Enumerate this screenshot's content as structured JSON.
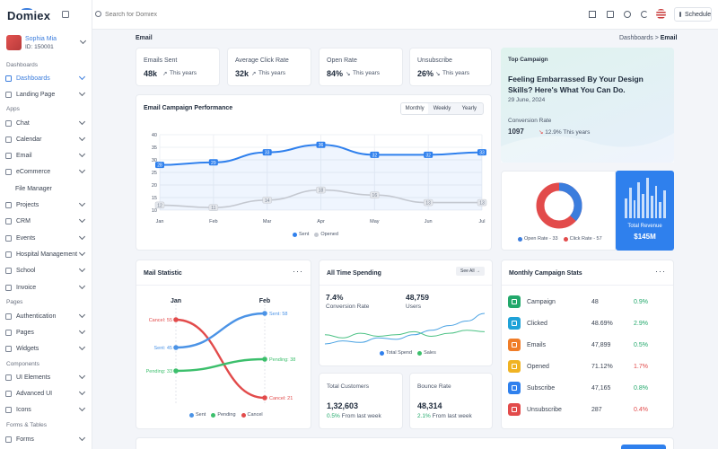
{
  "brand": {
    "logo": "Domiex"
  },
  "user": {
    "name": "Sophia Mia",
    "id": "ID: 150001"
  },
  "sidebar": {
    "sections": [
      "Dashboards",
      "Apps",
      "Pages",
      "Components",
      "Forms & Tables"
    ],
    "items": [
      {
        "label": "Dashboards",
        "active": true
      },
      {
        "label": "Landing Page"
      },
      {
        "label": "Chat"
      },
      {
        "label": "Calendar"
      },
      {
        "label": "Email"
      },
      {
        "label": "eCommerce"
      },
      {
        "label": "File Manager"
      },
      {
        "label": "Projects"
      },
      {
        "label": "CRM"
      },
      {
        "label": "Events"
      },
      {
        "label": "Hospital Management"
      },
      {
        "label": "School"
      },
      {
        "label": "Invoice"
      },
      {
        "label": "Authentication"
      },
      {
        "label": "Pages"
      },
      {
        "label": "Widgets"
      },
      {
        "label": "UI Elements"
      },
      {
        "label": "Advanced UI"
      },
      {
        "label": "Icons"
      },
      {
        "label": "Forms"
      }
    ]
  },
  "topbar": {
    "search_placeholder": "Search for Domiex",
    "schedule_label": "Schedule",
    "icons": [
      "grid-icon",
      "gift-icon",
      "settings-icon",
      "moon-icon",
      "flag-icon",
      "calendar-icon"
    ]
  },
  "page": {
    "title": "Email",
    "breadcrumb_parent": "Dashboards",
    "breadcrumb_sep": ">",
    "breadcrumb_current": "Email"
  },
  "stats": [
    {
      "label": "Emails Sent",
      "value": "48k",
      "trend": "up",
      "period": "This years"
    },
    {
      "label": "Average Click Rate",
      "value": "32k",
      "trend": "up",
      "period": "This years"
    },
    {
      "label": "Open Rate",
      "value": "84%",
      "trend": "down",
      "period": "This years"
    },
    {
      "label": "Unsubscribe",
      "value": "26%",
      "trend": "down",
      "period": "This years"
    }
  ],
  "performance": {
    "title": "Email Campaign Performance",
    "tabs": [
      "Monthly",
      "Weekly",
      "Yearly"
    ],
    "active_tab": "Monthly"
  },
  "top_campaign": {
    "title": "Top Campaign",
    "headline": "Feeling Embarrassed By Your Design Skills? Here's What You Can Do.",
    "date": "29 June, 2024",
    "conv_label": "Conversion Rate",
    "conv_value": "1097",
    "conv_change": "12.9%",
    "conv_period": "This years"
  },
  "donut": {
    "open_legend": "Open Rate - 33",
    "click_legend": "Click Rate - 57",
    "open_value": 33,
    "click_value": 57,
    "colors": {
      "open": "#3b7ddd",
      "click": "#e24b4b"
    }
  },
  "revenue": {
    "label": "Total Revenue",
    "value": "$145M",
    "bars": [
      0.5,
      0.75,
      0.45,
      0.9,
      0.6,
      1.0,
      0.55,
      0.8,
      0.4,
      0.7
    ]
  },
  "mail_statistic": {
    "title": "Mail Statistic",
    "col1": "Jan",
    "col2": "Feb",
    "left_labels": [
      "Cancel: 55",
      "Sent: 45",
      "Pending: 33"
    ],
    "right_labels": [
      "Sent: 58",
      "Pending: 38",
      "Cancel: 21"
    ],
    "legend": [
      "Sent",
      "Pending",
      "Cancel"
    ]
  },
  "all_time": {
    "title": "All Time Spending",
    "see_all": "See All",
    "conv_value": "7.4%",
    "conv_label": "Conversion Rate",
    "users_value": "48,759",
    "users_label": "Users",
    "legend": [
      "Total Spend",
      "Sales"
    ]
  },
  "customers": {
    "title": "Total Customers",
    "value": "1,32,603",
    "change": "0.5%",
    "period": "From last week"
  },
  "bounce": {
    "title": "Bounce Rate",
    "value": "48,314",
    "change": "2.1%",
    "period": "From last week"
  },
  "campaign_stats": {
    "title": "Monthly Campaign Stats",
    "rows": [
      {
        "name": "Campaign",
        "value": "48",
        "pct": "0.9%",
        "trend": "up",
        "color": "#22a86b"
      },
      {
        "name": "Clicked",
        "value": "48.69%",
        "pct": "2.9%",
        "trend": "up",
        "color": "#1fa2d8"
      },
      {
        "name": "Emails",
        "value": "47,899",
        "pct": "0.5%",
        "trend": "up",
        "color": "#f07d28"
      },
      {
        "name": "Opened",
        "value": "71.12%",
        "pct": "1.7%",
        "trend": "down",
        "color": "#f0b323"
      },
      {
        "name": "Subscribe",
        "value": "47,165",
        "pct": "0.8%",
        "trend": "up",
        "color": "#2f80ed"
      },
      {
        "name": "Unsubscribe",
        "value": "287",
        "pct": "0.4%",
        "trend": "down",
        "color": "#e24b4b"
      }
    ]
  },
  "chart_data": [
    {
      "type": "line",
      "categories": [
        "Jan",
        "Feb",
        "Mar",
        "Apr",
        "May",
        "Jun",
        "Jul"
      ],
      "ylim": [
        10,
        40
      ],
      "yticks": [
        10,
        15,
        20,
        25,
        30,
        35,
        40
      ],
      "series": [
        {
          "name": "Sent",
          "values": [
            28,
            29,
            33,
            36,
            32,
            32,
            33
          ],
          "color": "#2f80ed"
        },
        {
          "name": "Opened",
          "values": [
            12,
            11,
            14,
            18,
            16,
            13,
            13
          ],
          "color": "#c4c8d0"
        }
      ]
    },
    {
      "type": "line",
      "series": [
        {
          "name": "Total Spend",
          "values": [
            10,
            12,
            11,
            14,
            13,
            16,
            19,
            22,
            25,
            30
          ],
          "color": "#4ba3e3"
        },
        {
          "name": "Sales",
          "values": [
            16,
            14,
            17,
            15,
            16,
            18,
            15,
            17,
            19,
            18
          ],
          "color": "#4cc285"
        }
      ]
    }
  ]
}
